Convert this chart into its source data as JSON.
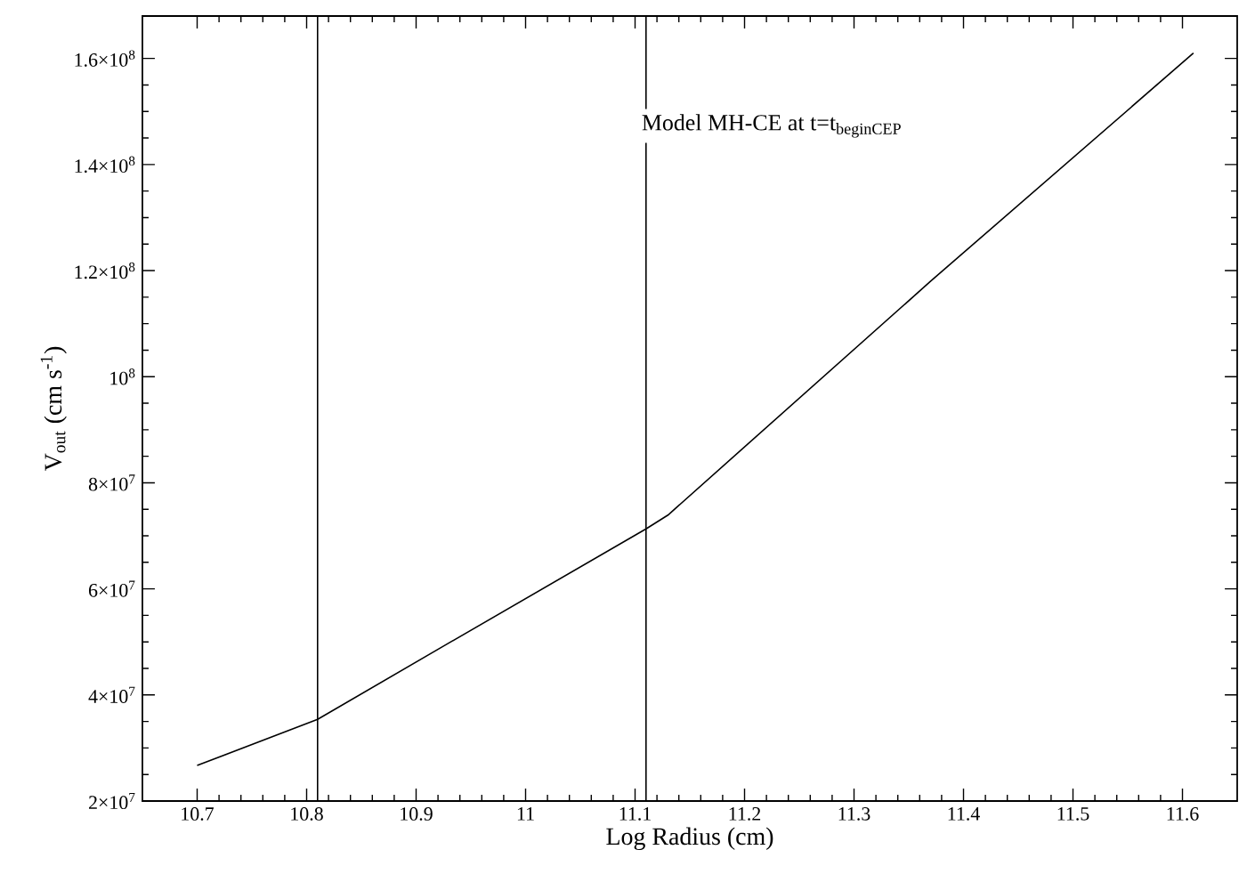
{
  "chart_data": {
    "type": "line",
    "xlabel": "Log Radius (cm)",
    "ylabel": "V$_{out}$ (cm s$^{-1}$)",
    "annotations": [
      "Model MH-CE at t=t$_{beginCEP}$"
    ],
    "series": [
      {
        "color": "#000000",
        "x": [
          10.7,
          10.81,
          10.93,
          11.11,
          11.13,
          11.37,
          11.61
        ],
        "values": [
          26700000,
          35400000,
          49800000,
          71300000,
          73900000,
          118000000,
          161000000
        ]
      }
    ],
    "ref_lines": [
      {
        "axis": "x",
        "value": 10.81,
        "color": "#000000"
      },
      {
        "axis": "x",
        "value": 11.11,
        "color": "#000000"
      }
    ],
    "xlim": [
      10.65,
      11.65
    ],
    "xticks": [
      10.7,
      10.8,
      10.9,
      11,
      11.1,
      11.2,
      11.3,
      11.4,
      11.5,
      11.6
    ],
    "ylim": [
      20000000,
      168000000
    ],
    "yticks": [
      {
        "value": 20000000,
        "label": "2×10$^{7}$"
      },
      {
        "value": 40000000,
        "label": "4×10$^{7}$"
      },
      {
        "value": 60000000,
        "label": "6×10$^{7}$"
      },
      {
        "value": 80000000,
        "label": "8×10$^{7}$"
      },
      {
        "value": 100000000,
        "label": "10$^{8}$"
      },
      {
        "value": 120000000,
        "label": "1.2×10$^{8}$"
      },
      {
        "value": 140000000,
        "label": "1.4×10$^{8}$"
      },
      {
        "value": 160000000,
        "label": "1.6×10$^{8}$"
      }
    ],
    "marker": "none",
    "line_style": "solid"
  }
}
